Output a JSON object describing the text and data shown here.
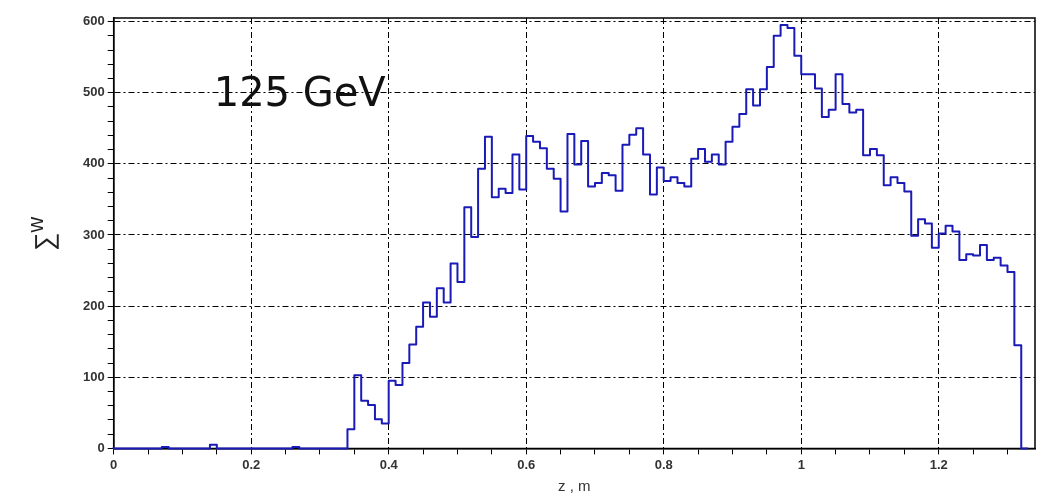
{
  "chart_data": {
    "type": "step",
    "xlabel": "z , m",
    "ylabel": "∑$^{w}$",
    "annotations": [
      "125 GeV"
    ],
    "x": [
      0,
      0.01,
      0.02,
      0.03,
      0.04,
      0.05,
      0.06,
      0.07,
      0.08,
      0.09,
      0.1,
      0.11,
      0.12,
      0.13,
      0.14,
      0.15,
      0.16,
      0.17,
      0.18,
      0.19,
      0.2,
      0.21,
      0.22,
      0.23,
      0.24,
      0.25,
      0.26,
      0.27,
      0.28,
      0.29,
      0.3,
      0.31,
      0.32,
      0.33,
      0.34,
      0.35,
      0.36,
      0.37,
      0.38,
      0.39,
      0.4,
      0.41,
      0.42,
      0.43,
      0.44,
      0.45,
      0.46,
      0.47,
      0.48,
      0.49,
      0.5,
      0.51,
      0.52,
      0.53,
      0.54,
      0.55,
      0.56,
      0.57,
      0.58,
      0.59,
      0.6,
      0.61,
      0.62,
      0.63,
      0.64,
      0.65,
      0.66,
      0.67,
      0.68,
      0.69,
      0.7,
      0.71,
      0.72,
      0.73,
      0.74,
      0.75,
      0.76,
      0.77,
      0.78,
      0.79,
      0.8,
      0.81,
      0.82,
      0.83,
      0.84,
      0.85,
      0.86,
      0.87,
      0.88,
      0.89,
      0.9,
      0.91,
      0.92,
      0.93,
      0.94,
      0.95,
      0.96,
      0.97,
      0.98,
      0.99,
      1,
      1.01,
      1.02,
      1.03,
      1.04,
      1.05,
      1.06,
      1.07,
      1.08,
      1.09,
      1.1,
      1.11,
      1.12,
      1.13,
      1.14,
      1.15,
      1.16,
      1.17,
      1.18,
      1.19,
      1.2,
      1.21,
      1.22,
      1.23,
      1.24,
      1.25,
      1.26,
      1.27,
      1.28,
      1.29,
      1.3,
      1.31,
      1.32,
      1.33
    ],
    "values": [
      2,
      0,
      0,
      0,
      0,
      0,
      0,
      0,
      2,
      0,
      0,
      0,
      0,
      0,
      0,
      5,
      0,
      0,
      0,
      0,
      0,
      0,
      0,
      0,
      0,
      0,
      0,
      2,
      0,
      0,
      0,
      0,
      0,
      0,
      0,
      27,
      103,
      67,
      61,
      41,
      35,
      95,
      89,
      120,
      146,
      171,
      205,
      185,
      225,
      205,
      260,
      234,
      339,
      297,
      393,
      438,
      353,
      365,
      359,
      413,
      364,
      439,
      431,
      422,
      393,
      379,
      333,
      442,
      399,
      432,
      368,
      373,
      387,
      384,
      362,
      427,
      441,
      450,
      413,
      357,
      395,
      376,
      381,
      373,
      368,
      407,
      421,
      403,
      413,
      399,
      431,
      452,
      470,
      505,
      482,
      505,
      536,
      580,
      595,
      591,
      552,
      526,
      526,
      506,
      466,
      476,
      526,
      484,
      472,
      476,
      412,
      421,
      412,
      370,
      381,
      373,
      361,
      299,
      322,
      316,
      282,
      302,
      313,
      305,
      265,
      273,
      271,
      286,
      265,
      268,
      257,
      248,
      145,
      0
    ],
    "color": "#1a1ab8",
    "xlim": [
      0,
      1.34
    ],
    "xticks": [
      0,
      {
        "value": 0.05,
        "label": null
      },
      {
        "value": 0.1,
        "label": null
      },
      {
        "value": 0.15,
        "label": null
      },
      0.2,
      {
        "value": 0.25,
        "label": null
      },
      {
        "value": 0.3,
        "label": null
      },
      {
        "value": 0.35,
        "label": null
      },
      0.4,
      {
        "value": 0.45,
        "label": null
      },
      {
        "value": 0.5,
        "label": null
      },
      {
        "value": 0.55,
        "label": null
      },
      0.6,
      {
        "value": 0.65,
        "label": null
      },
      {
        "value": 0.7,
        "label": null
      },
      {
        "value": 0.75,
        "label": null
      },
      0.8,
      {
        "value": 0.85,
        "label": null
      },
      {
        "value": 0.9,
        "label": null
      },
      {
        "value": 0.95,
        "label": null
      },
      1,
      {
        "value": 1.05,
        "label": null
      },
      {
        "value": 1.1,
        "label": null
      },
      {
        "value": 1.15,
        "label": null
      },
      1.2,
      {
        "value": 1.25,
        "label": null
      },
      {
        "value": 1.3,
        "label": null
      }
    ],
    "ylim": [
      0,
      605
    ],
    "yticks": [
      0,
      {
        "value": 20,
        "label": null
      },
      {
        "value": 40,
        "label": null
      },
      {
        "value": 60,
        "label": null
      },
      {
        "value": 80,
        "label": null
      },
      100,
      {
        "value": 120,
        "label": null
      },
      {
        "value": 140,
        "label": null
      },
      {
        "value": 160,
        "label": null
      },
      {
        "value": 180,
        "label": null
      },
      200,
      {
        "value": 220,
        "label": null
      },
      {
        "value": 240,
        "label": null
      },
      {
        "value": 260,
        "label": null
      },
      {
        "value": 280,
        "label": null
      },
      300,
      {
        "value": 320,
        "label": null
      },
      {
        "value": 340,
        "label": null
      },
      {
        "value": 360,
        "label": null
      },
      {
        "value": 380,
        "label": null
      },
      400,
      {
        "value": 420,
        "label": null
      },
      {
        "value": 440,
        "label": null
      },
      {
        "value": 460,
        "label": null
      },
      {
        "value": 480,
        "label": null
      },
      500,
      {
        "value": 520,
        "label": null
      },
      {
        "value": 540,
        "label": null
      },
      {
        "value": 560,
        "label": null
      },
      {
        "value": 580,
        "label": null
      },
      600
    ],
    "grid": true
  }
}
